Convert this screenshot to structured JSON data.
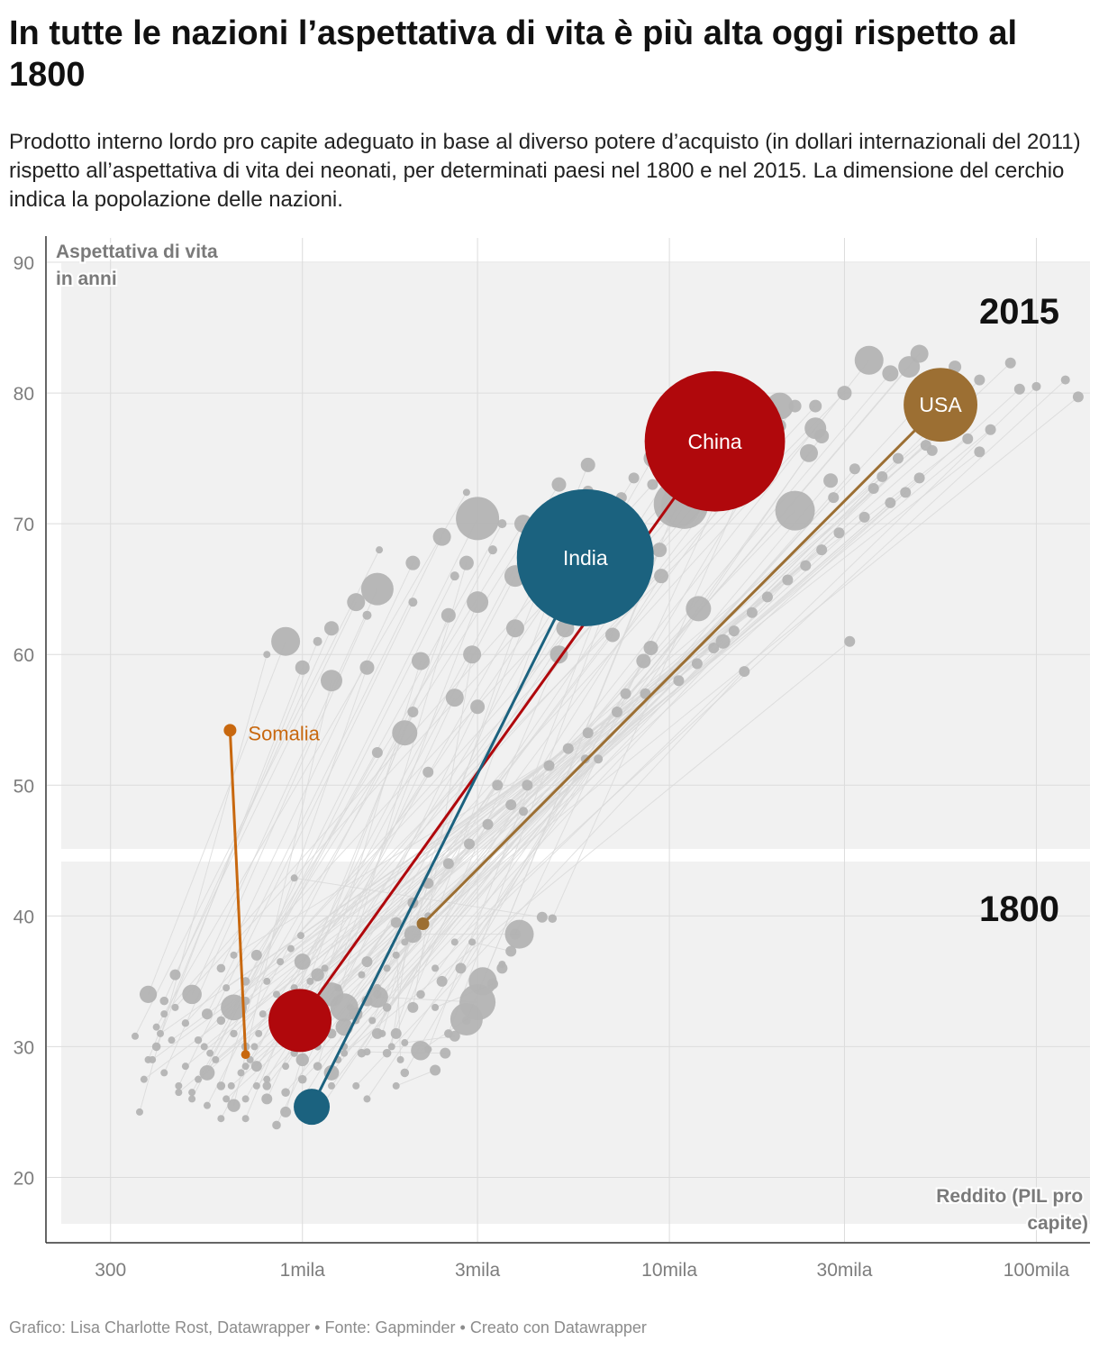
{
  "title": "In tutte le nazioni l’aspettativa di vita è più alta oggi rispetto al 1800",
  "subtitle": "Prodotto interno lordo pro capite adeguato in base al diverso potere d’acquisto (in dollari internazionali del 2011) rispetto all’aspettativa di vita dei neonati, per determinati paesi nel 1800 e nel 2015. La dimensione del cerchio indica la popolazione delle nazioni.",
  "footer": "Grafico: Lisa Charlotte Rost, Datawrapper • Fonte: Gapminder • Creato con Datawrapper",
  "colors": {
    "china": "#b0080c",
    "india": "#1b627f",
    "usa": "#9c6f33",
    "somalia": "#c8680f",
    "others": "#b3b3b3",
    "panel": "#f1f1f1"
  },
  "chart_data": {
    "type": "scatter",
    "x_scale": "log",
    "xlim": [
      200,
      140000
    ],
    "ylim": [
      15,
      92
    ],
    "ylabel": "Aspettativa di vita in anni",
    "xlabel": "Reddito (PIL pro capite)",
    "y_ticks": [
      20,
      30,
      40,
      50,
      60,
      70,
      80,
      90
    ],
    "x_ticks": [
      {
        "value": 300,
        "label": "300"
      },
      {
        "value": 1000,
        "label": "1mila"
      },
      {
        "value": 3000,
        "label": "3mila"
      },
      {
        "value": 10000,
        "label": "10mila"
      },
      {
        "value": 30000,
        "label": "30mila"
      },
      {
        "value": 100000,
        "label": "100mila"
      }
    ],
    "period_labels": {
      "y2015": "2015",
      "y1800": "1800"
    },
    "highlighted": [
      {
        "name": "China",
        "color_key": "china",
        "population_m": 1376,
        "gdp_1800": 985,
        "life_1800": 32.0,
        "gdp_2015": 13300,
        "life_2015": 76.3
      },
      {
        "name": "India",
        "color_key": "india",
        "population_m": 1311,
        "gdp_1800": 1060,
        "life_1800": 25.4,
        "gdp_2015": 5900,
        "life_2015": 67.4
      },
      {
        "name": "USA",
        "color_key": "usa",
        "population_m": 322,
        "gdp_1800": 2130,
        "life_1800": 39.4,
        "gdp_2015": 54800,
        "life_2015": 79.1
      },
      {
        "name": "Somalia",
        "color_key": "somalia",
        "population_m": 11,
        "gdp_1800": 700,
        "life_1800": 29.4,
        "gdp_2015": 635,
        "life_2015": 54.2
      }
    ],
    "others": [
      [
        350,
        30.8,
        1620,
        68.0,
        4
      ],
      [
        400,
        31.5,
        2800,
        72.4,
        4
      ],
      [
        420,
        32.5,
        7400,
        72.0,
        6
      ],
      [
        450,
        33.0,
        9000,
        73.0,
        6
      ],
      [
        480,
        31.8,
        12500,
        75.0,
        7
      ],
      [
        520,
        30.5,
        20000,
        77.5,
        7
      ],
      [
        560,
        29.5,
        3500,
        70.0,
        5
      ],
      [
        600,
        32.0,
        15000,
        76.0,
        8
      ],
      [
        650,
        31.0,
        25000,
        79.0,
        7
      ],
      [
        700,
        33.5,
        30000,
        80.0,
        8
      ],
      [
        380,
        29.0,
        1100,
        61.0,
        5
      ],
      [
        420,
        28.0,
        1500,
        63.0,
        5
      ],
      [
        460,
        27.0,
        2000,
        64.0,
        5
      ],
      [
        500,
        26.0,
        2600,
        66.0,
        5
      ],
      [
        550,
        25.5,
        3300,
        68.0,
        5
      ],
      [
        600,
        24.5,
        4200,
        69.0,
        5
      ],
      [
        360,
        25.0,
        800,
        60.0,
        4
      ],
      [
        700,
        26.0,
        6000,
        72.5,
        6
      ],
      [
        800,
        27.5,
        8000,
        73.5,
        6
      ],
      [
        900,
        28.5,
        11000,
        75.5,
        6
      ],
      [
        950,
        29.5,
        18000,
        77.0,
        7
      ],
      [
        1100,
        30.0,
        22000,
        79.0,
        7
      ],
      [
        1200,
        31.0,
        40000,
        81.5,
        9
      ],
      [
        1300,
        31.5,
        35000,
        82.5,
        16
      ],
      [
        1400,
        32.5,
        45000,
        82.0,
        12
      ],
      [
        1500,
        33.5,
        48000,
        83.0,
        10
      ],
      [
        1600,
        34.5,
        60000,
        82.0,
        7
      ],
      [
        1700,
        36.0,
        70000,
        81.0,
        6
      ],
      [
        1800,
        37.0,
        90000,
        80.3,
        6
      ],
      [
        1900,
        38.0,
        130000,
        79.7,
        6
      ],
      [
        2300,
        36.0,
        100000,
        80.5,
        5
      ],
      [
        2600,
        38.0,
        120000,
        81.0,
        5
      ],
      [
        2200,
        40.0,
        85000,
        82.3,
        6
      ],
      [
        1100,
        35.5,
        25000,
        77.3,
        12
      ],
      [
        1000,
        36.5,
        20000,
        79.0,
        15
      ],
      [
        1200,
        34.0,
        22000,
        71.0,
        22
      ],
      [
        1300,
        33.0,
        11000,
        71.4,
        26
      ],
      [
        1500,
        36.5,
        9000,
        75.0,
        10
      ],
      [
        1600,
        34.0,
        6000,
        74.5,
        8
      ],
      [
        700,
        35.0,
        5000,
        73.0,
        8
      ],
      [
        750,
        37.0,
        4000,
        70.0,
        10
      ],
      [
        650,
        33.0,
        3000,
        70.4,
        24
      ],
      [
        550,
        32.5,
        2400,
        69.0,
        10
      ],
      [
        600,
        36.0,
        2000,
        67.0,
        8
      ],
      [
        500,
        34.0,
        1600,
        65.0,
        18
      ],
      [
        450,
        35.5,
        1400,
        64.0,
        10
      ],
      [
        420,
        33.5,
        1200,
        62.0,
        8
      ],
      [
        380,
        34.0,
        900,
        61.0,
        16
      ],
      [
        400,
        30.0,
        1000,
        59.0,
        8
      ],
      [
        900,
        30.5,
        2500,
        63.0,
        8
      ],
      [
        1000,
        29.0,
        3000,
        64.0,
        12
      ],
      [
        1100,
        28.5,
        2800,
        67.0,
        8
      ],
      [
        850,
        31.5,
        3800,
        66.0,
        12
      ],
      [
        700,
        30.0,
        4600,
        64.0,
        8
      ],
      [
        750,
        28.5,
        5200,
        62.0,
        10
      ],
      [
        800,
        27.0,
        7000,
        61.5,
        8
      ],
      [
        900,
        26.5,
        8500,
        59.5,
        8
      ],
      [
        1000,
        27.5,
        14000,
        61.0,
        8
      ],
      [
        1200,
        28.0,
        12000,
        63.5,
        14
      ],
      [
        1300,
        29.5,
        31000,
        61.0,
        6
      ],
      [
        1400,
        27.0,
        16000,
        58.7,
        6
      ],
      [
        1450,
        29.5,
        9500,
        66.0,
        8
      ],
      [
        700,
        24.5,
        2000,
        55.6,
        6
      ],
      [
        800,
        26.0,
        2600,
        56.7,
        10
      ],
      [
        850,
        24.0,
        3000,
        56.0,
        8
      ],
      [
        900,
        25.0,
        2100,
        59.5,
        10
      ],
      [
        600,
        27.0,
        1500,
        59.0,
        8
      ],
      [
        650,
        25.5,
        1200,
        58.0,
        12
      ],
      [
        550,
        28.0,
        1900,
        54.0,
        14
      ],
      [
        500,
        26.5,
        1600,
        52.5,
        6
      ],
      [
        700,
        28.5,
        2200,
        51.0,
        6
      ],
      [
        750,
        27.0,
        5900,
        52.0,
        5
      ],
      [
        1000,
        26.0,
        3400,
        50.0,
        6
      ],
      [
        1100,
        25.0,
        4000,
        48.0,
        5
      ],
      [
        1500,
        26.0,
        6400,
        52.0,
        5
      ],
      [
        1200,
        27.0,
        7600,
        57.0,
        6
      ],
      [
        1800,
        31.0,
        5000,
        60.0,
        10
      ],
      [
        2000,
        33.0,
        2900,
        60.0,
        10
      ],
      [
        1600,
        31.0,
        3800,
        62.0,
        10
      ],
      [
        1700,
        29.5,
        4800,
        65.0,
        8
      ],
      [
        2200,
        29.8,
        6300,
        63.0,
        7
      ],
      [
        2500,
        31.0,
        7200,
        66.0,
        8
      ],
      [
        1900,
        28.0,
        8900,
        60.5,
        8
      ],
      [
        2800,
        32.0,
        9400,
        68.0,
        8
      ],
      [
        3100,
        35.0,
        10500,
        71.5,
        26
      ],
      [
        3800,
        38.6,
        14000,
        72.8,
        10
      ],
      [
        4800,
        39.8,
        16500,
        73.8,
        8
      ],
      [
        2700,
        36.0,
        18000,
        74.6,
        10
      ],
      [
        2400,
        35.0,
        24000,
        75.4,
        10
      ],
      [
        2100,
        34.0,
        26000,
        76.7,
        8
      ],
      [
        1700,
        33.0,
        27500,
        73.3,
        8
      ],
      [
        1400,
        32.0,
        28000,
        72.0,
        6
      ],
      [
        1300,
        30.0,
        32000,
        74.2,
        6
      ],
      [
        1250,
        29.0,
        36000,
        72.7,
        6
      ],
      [
        1150,
        31.5,
        38000,
        73.6,
        6
      ],
      [
        1050,
        33.5,
        42000,
        75.0,
        6
      ],
      [
        950,
        34.5,
        50000,
        76.0,
        6
      ],
      [
        900,
        33.0,
        55000,
        77.0,
        6
      ],
      [
        850,
        34.0,
        58000,
        78.0,
        6
      ],
      [
        800,
        35.0,
        65000,
        76.5,
        6
      ],
      [
        780,
        32.5,
        70000,
        75.5,
        6
      ],
      [
        760,
        31.0,
        75000,
        77.2,
        6
      ],
      [
        740,
        30.0,
        52000,
        75.6,
        6
      ],
      [
        720,
        29.0,
        48000,
        73.5,
        6
      ],
      [
        680,
        28.0,
        44000,
        72.4,
        6
      ],
      [
        640,
        27.0,
        40000,
        71.6,
        6
      ],
      [
        620,
        26.0,
        34000,
        70.5,
        6
      ],
      [
        580,
        29.0,
        29000,
        69.3,
        6
      ],
      [
        540,
        30.0,
        26000,
        68.0,
        6
      ],
      [
        520,
        27.5,
        23500,
        66.8,
        6
      ],
      [
        480,
        28.5,
        21000,
        65.7,
        6
      ],
      [
        460,
        26.5,
        18500,
        64.4,
        6
      ],
      [
        440,
        30.5,
        16800,
        63.2,
        6
      ],
      [
        410,
        31.0,
        15000,
        61.8,
        6
      ],
      [
        390,
        29.0,
        13200,
        60.5,
        6
      ],
      [
        370,
        27.5,
        11900,
        59.3,
        6
      ],
      [
        650,
        37.0,
        10600,
        58.0,
        6
      ],
      [
        620,
        34.5,
        8600,
        57.0,
        6
      ],
      [
        870,
        36.5,
        7200,
        55.6,
        6
      ],
      [
        930,
        37.5,
        6000,
        54.0,
        6
      ],
      [
        990,
        38.5,
        5300,
        52.8,
        6
      ],
      [
        1050,
        35.0,
        4700,
        51.5,
        6
      ],
      [
        1150,
        36.0,
        4100,
        50.0,
        6
      ],
      [
        1250,
        34.5,
        3700,
        48.5,
        6
      ],
      [
        1350,
        33.0,
        3200,
        47.0,
        6
      ],
      [
        1450,
        35.5,
        2850,
        45.5,
        6
      ],
      [
        1550,
        32.0,
        2500,
        44.0,
        6
      ],
      [
        1650,
        31.0,
        2200,
        42.5,
        6
      ],
      [
        1750,
        30.0,
        2000,
        41.0,
        6
      ],
      [
        1850,
        29.0,
        1800,
        39.5,
        6
      ],
      [
        950,
        42.9,
        4500,
        39.9,
        6
      ],
      [
        2000,
        38.6,
        3900,
        38.6,
        16
      ],
      [
        2900,
        38.0,
        3700,
        37.3,
        6
      ],
      [
        3500,
        36.3,
        3500,
        36.0,
        6
      ],
      [
        2300,
        33.0,
        3300,
        34.8,
        6
      ],
      [
        1600,
        33.8,
        3000,
        33.4,
        20
      ],
      [
        2100,
        29.7,
        2800,
        32.1,
        18
      ],
      [
        1900,
        30.3,
        2600,
        30.8,
        6
      ],
      [
        1500,
        29.6,
        2450,
        29.5,
        6
      ],
      [
        1800,
        27.0,
        2300,
        28.2,
        6
      ]
    ]
  }
}
